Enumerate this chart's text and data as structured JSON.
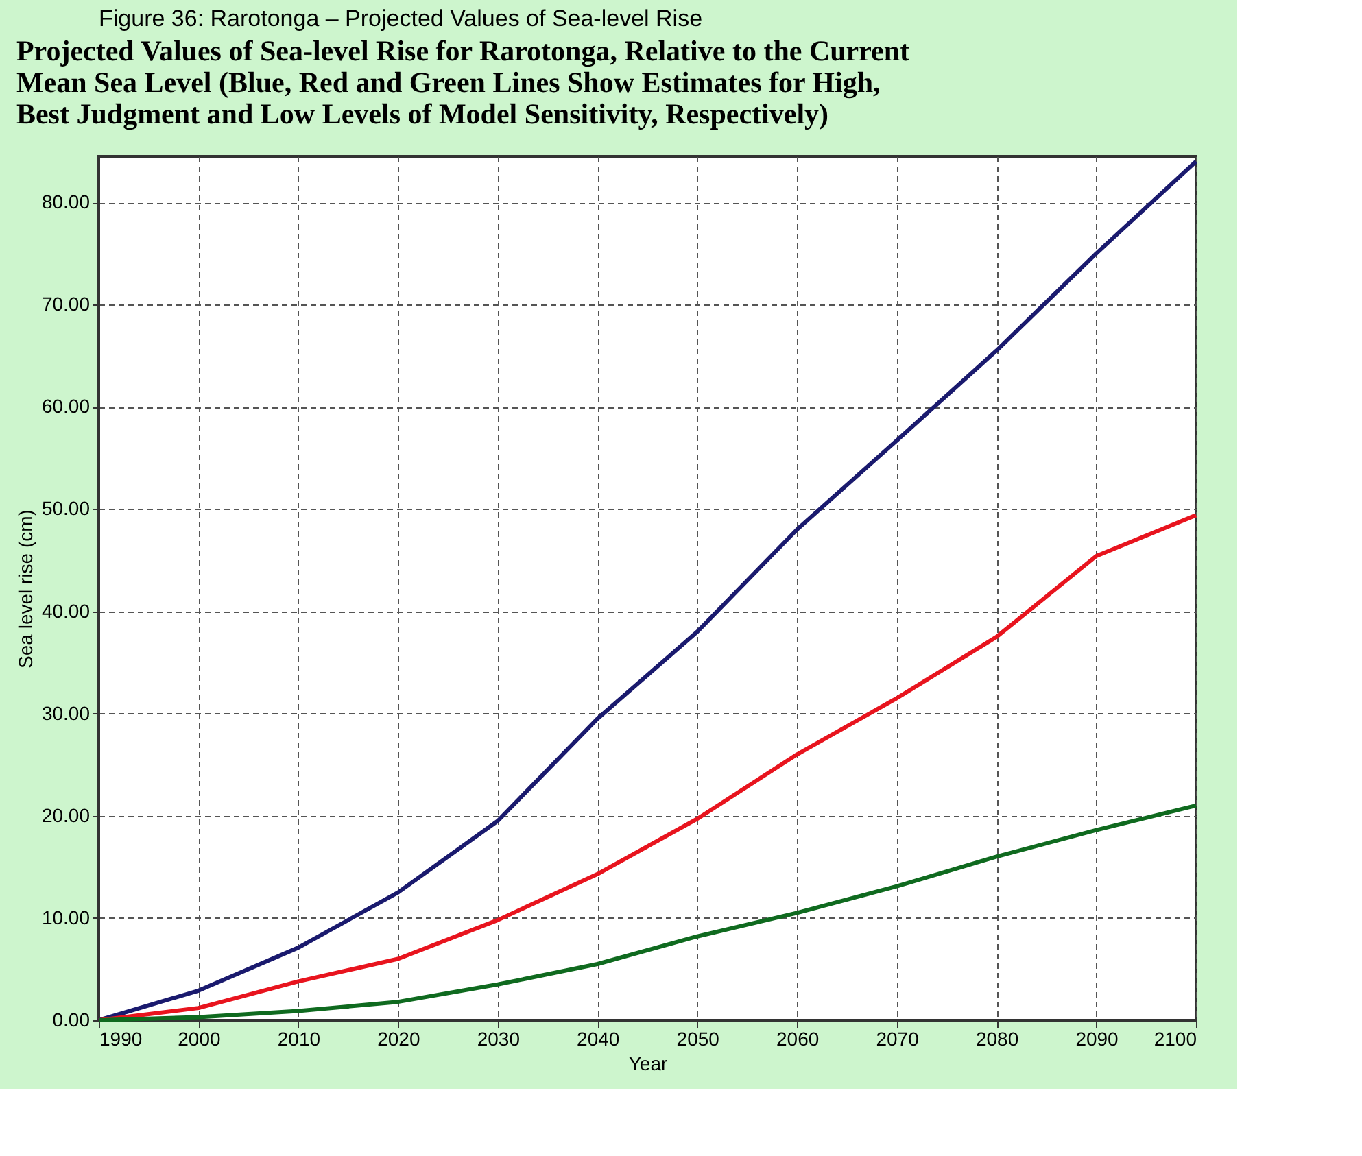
{
  "chart_data": {
    "type": "line",
    "title": "Projected Values of Sea-level Rise for Rarotonga, Relative to the Current\nMean Sea Level (Blue, Red and Green Lines Show Estimates for High,\nBest Judgment and Low Levels of Model Sensitivity, Respectively)",
    "annotations": [
      "Figure 36: Rarotonga – Projected Values of Sea-level Rise"
    ],
    "xlabel": "Year",
    "ylabel": "Sea level rise (cm)",
    "x": [
      1990,
      2000,
      2010,
      2020,
      2030,
      2040,
      2050,
      2060,
      2070,
      2080,
      2090,
      2100
    ],
    "series": [
      {
        "color": "#1a1a6e",
        "values": [
          0,
          2.9,
          7.1,
          12.5,
          19.5,
          29.5,
          38,
          48,
          56.7,
          65.5,
          75,
          84
        ]
      },
      {
        "color": "#e8141e",
        "values": [
          0,
          1.2,
          3.8,
          6.0,
          9.8,
          14.3,
          19.7,
          26,
          31.5,
          37.5,
          45.4,
          49.4
        ]
      },
      {
        "color": "#0f6a1f",
        "values": [
          0,
          0.3,
          0.9,
          1.8,
          3.5,
          5.5,
          8.2,
          10.5,
          13.1,
          16,
          18.6,
          21
        ]
      }
    ],
    "xlim": [
      1990,
      2100
    ],
    "ylim": [
      0,
      84.5
    ],
    "xticks": [
      1990,
      2000,
      2010,
      2020,
      2030,
      2040,
      2050,
      2060,
      2070,
      2080,
      2090,
      2100
    ],
    "yticks": [
      {
        "value": 0,
        "label": "0.00"
      },
      {
        "value": 10,
        "label": "10.00"
      },
      {
        "value": 20,
        "label": "20.00"
      },
      {
        "value": 30,
        "label": "30.00"
      },
      {
        "value": 40,
        "label": "40.00"
      },
      {
        "value": 50,
        "label": "50.00"
      },
      {
        "value": 60,
        "label": "60.00"
      },
      {
        "value": 70,
        "label": "70.00"
      },
      {
        "value": 80,
        "label": "80.00"
      }
    ],
    "grid": true,
    "legend": false,
    "marker": "none",
    "line_style": "solid"
  }
}
